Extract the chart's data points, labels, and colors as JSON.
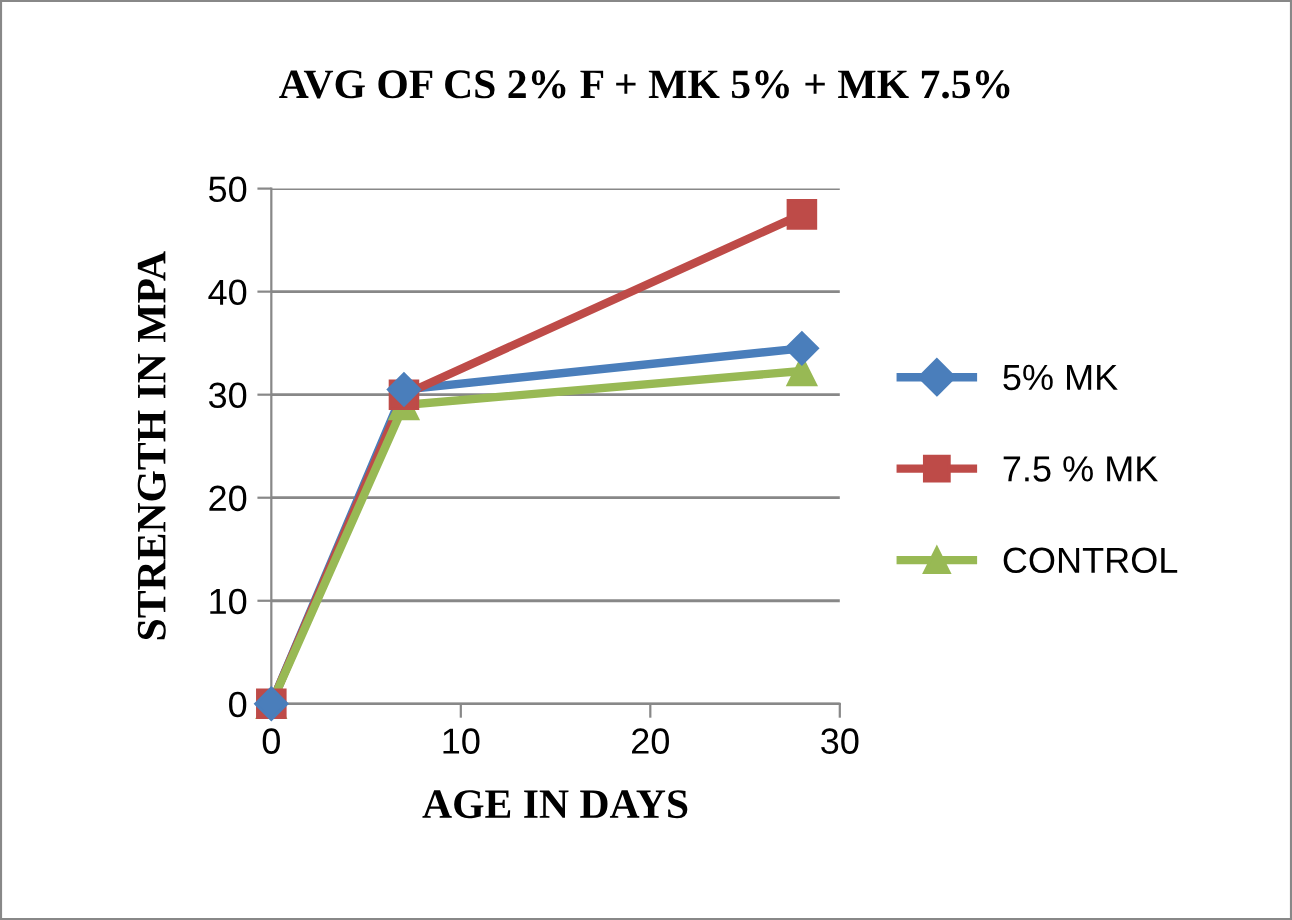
{
  "chart_data": {
    "type": "line",
    "title": "AVG OF CS 2% F + MK 5% + MK 7.5%",
    "xlabel": "AGE IN DAYS",
    "ylabel": "STRENGTH IN MPA",
    "x": [
      0,
      7,
      28
    ],
    "series": [
      {
        "name": "5% MK",
        "color": "#4a7ebb",
        "values": [
          0,
          30.5,
          34.5
        ],
        "marker": "diamond"
      },
      {
        "name": "7.5 % MK",
        "color": "#be4b48",
        "values": [
          0,
          30,
          47.5
        ],
        "marker": "square"
      },
      {
        "name": "CONTROL",
        "color": "#98b954",
        "values": [
          0,
          29,
          32.3
        ],
        "marker": "triangle"
      }
    ],
    "xlim": [
      0,
      30
    ],
    "xticks": [
      0,
      10,
      20,
      30
    ],
    "ylim": [
      0,
      50
    ],
    "yticks": [
      0,
      10,
      20,
      30,
      40,
      50
    ],
    "grid": "y",
    "legend": "right",
    "line_style": "solid"
  }
}
